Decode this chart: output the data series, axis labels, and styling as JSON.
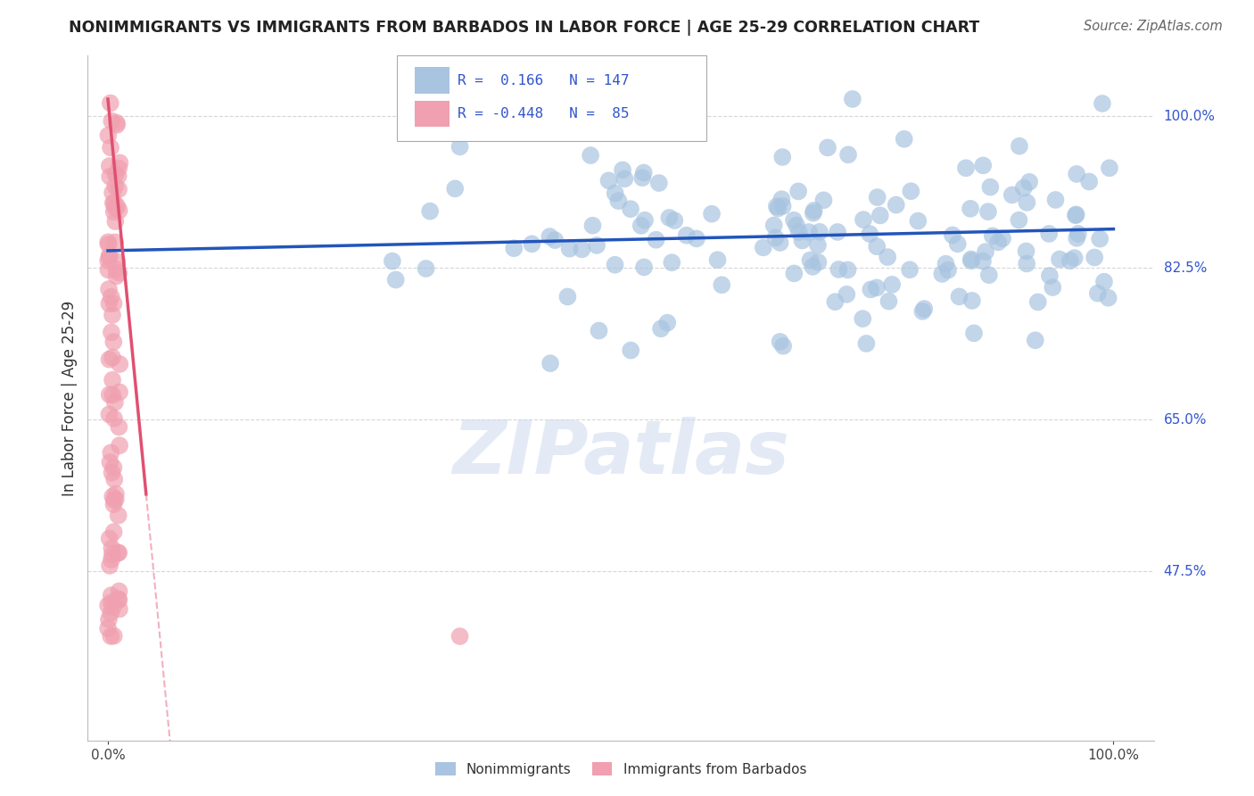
{
  "title": "NONIMMIGRANTS VS IMMIGRANTS FROM BARBADOS IN LABOR FORCE | AGE 25-29 CORRELATION CHART",
  "source": "Source: ZipAtlas.com",
  "ylabel": "In Labor Force | Age 25-29",
  "ytick_values": [
    0.475,
    0.65,
    0.825,
    1.0
  ],
  "ytick_labels": [
    "47.5%",
    "65.0%",
    "82.5%",
    "100.0%"
  ],
  "blue_R": 0.166,
  "blue_N": 147,
  "pink_R": -0.448,
  "pink_N": 85,
  "blue_color": "#a8c4e0",
  "pink_color": "#f0a0b0",
  "blue_line_color": "#2255bb",
  "pink_line_color": "#e05070",
  "legend_label_blue": "Nonimmigrants",
  "legend_label_pink": "Immigrants from Barbados",
  "background_color": "#ffffff",
  "grid_color": "#cccccc",
  "axis_label_color": "#3355cc",
  "title_color": "#222222",
  "source_color": "#666666",
  "ylabel_color": "#333333"
}
